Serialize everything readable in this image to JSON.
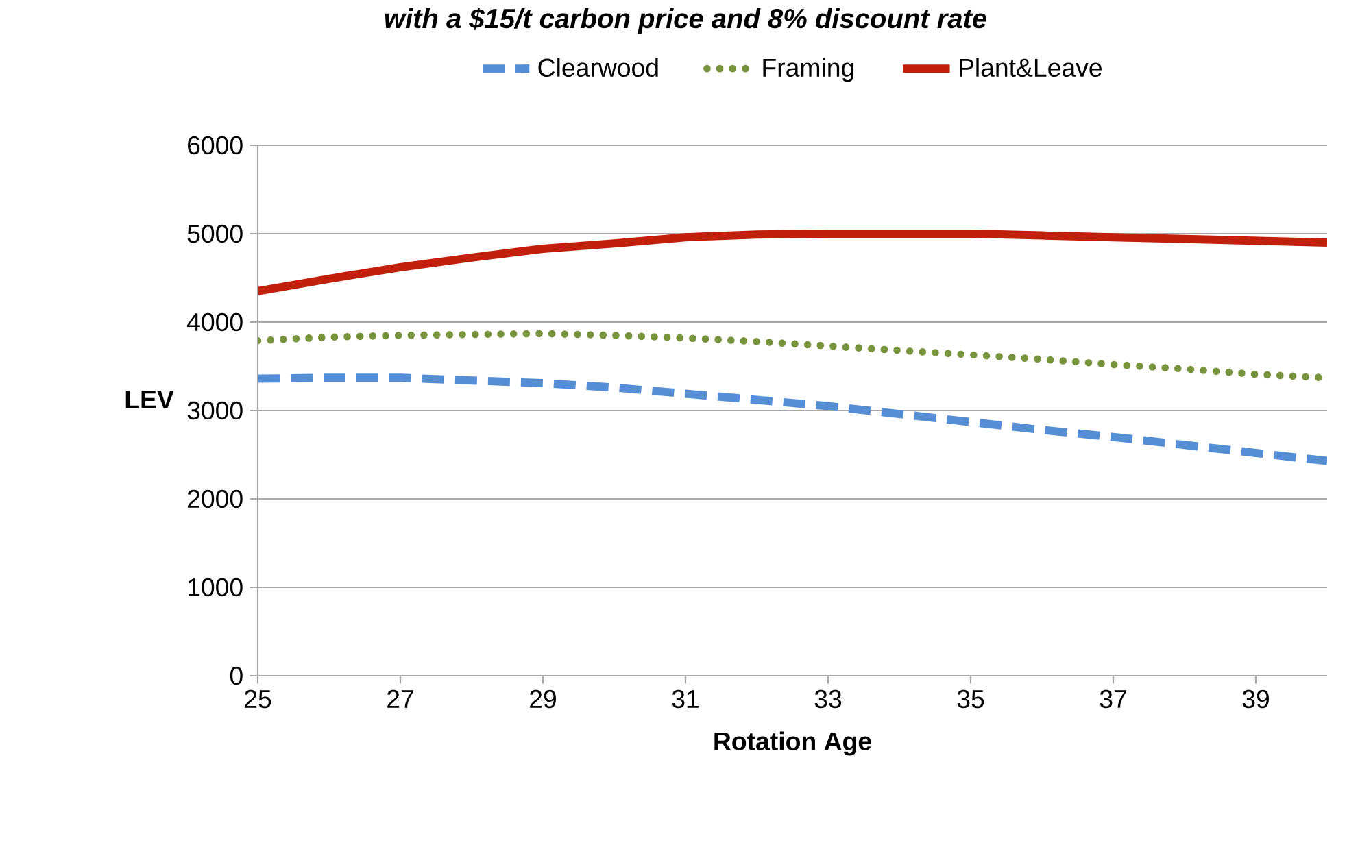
{
  "chart_data": {
    "type": "line",
    "title": "with a $15/t carbon price and 8% discount rate",
    "xlabel": "Rotation Age",
    "ylabel": "LEV",
    "x": [
      25,
      26,
      27,
      28,
      29,
      30,
      31,
      32,
      33,
      34,
      35,
      36,
      37,
      38,
      39,
      40
    ],
    "series": [
      {
        "name": "Clearwood",
        "color": "#558ed5",
        "line_style": "dashed",
        "values": [
          3360,
          3370,
          3370,
          3340,
          3310,
          3260,
          3190,
          3120,
          3050,
          2960,
          2870,
          2780,
          2700,
          2610,
          2520,
          2430
        ]
      },
      {
        "name": "Framing",
        "color": "#77933c",
        "line_style": "dotted",
        "values": [
          3790,
          3830,
          3850,
          3860,
          3870,
          3850,
          3820,
          3780,
          3730,
          3680,
          3630,
          3580,
          3520,
          3470,
          3410,
          3370
        ]
      },
      {
        "name": "Plant&Leave",
        "color": "#c0200c",
        "line_style": "solid",
        "values": [
          4350,
          4490,
          4620,
          4730,
          4830,
          4890,
          4960,
          4990,
          5000,
          5000,
          5000,
          4980,
          4960,
          4940,
          4920,
          4900
        ]
      }
    ],
    "xlim": [
      25,
      40
    ],
    "xticks": [
      25,
      27,
      29,
      31,
      33,
      35,
      37,
      39
    ],
    "ylim": [
      0,
      6000
    ],
    "yticks": [
      0,
      1000,
      2000,
      3000,
      4000,
      5000,
      6000
    ],
    "grid": "y",
    "legend": "top",
    "marker": "none"
  }
}
